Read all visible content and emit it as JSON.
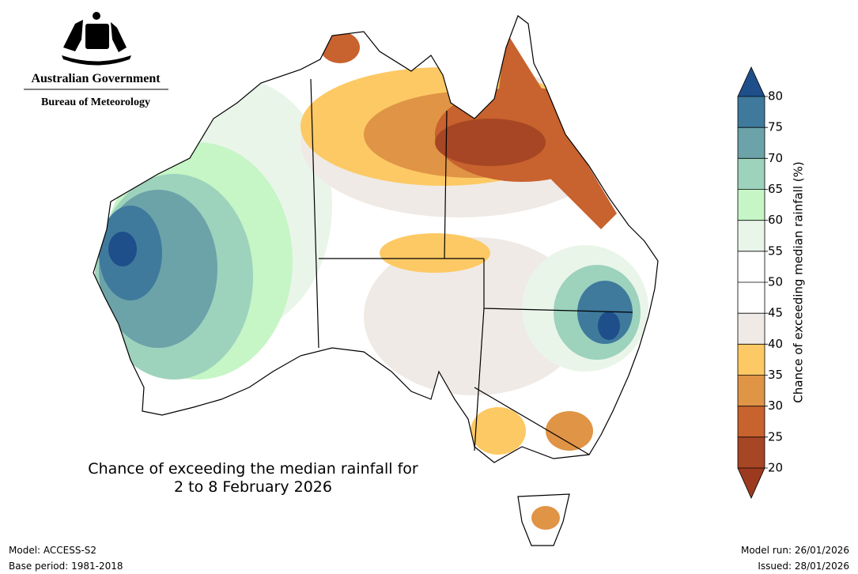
{
  "header": {
    "government": "Australian Government",
    "agency": "Bureau of Meteorology"
  },
  "map": {
    "title_lines": [
      "Chance of exceeding the median rainfall for",
      "2 to 8 February 2026"
    ]
  },
  "legend": {
    "title": "Chance of exceeding median rainfall (%)",
    "ticks": [
      20,
      25,
      30,
      35,
      40,
      45,
      50,
      55,
      60,
      65,
      70,
      75,
      80
    ],
    "colors": [
      "#a64624",
      "#c8622e",
      "#df9446",
      "#fdc964",
      "#efeae5",
      "#ffffff",
      "#ffffff",
      "#eaf5e9",
      "#c6f5c6",
      "#9dd2bd",
      "#6ba3a8",
      "#3f7a9d"
    ],
    "over_color": "#1e4f8a",
    "under_color": "#9c3a1f"
  },
  "footer": {
    "model": "Model: ACCESS-S2",
    "base_period": "Base period: 1981-2018",
    "model_run": "Model run: 26/01/2026",
    "issued": "Issued: 28/01/2026"
  }
}
